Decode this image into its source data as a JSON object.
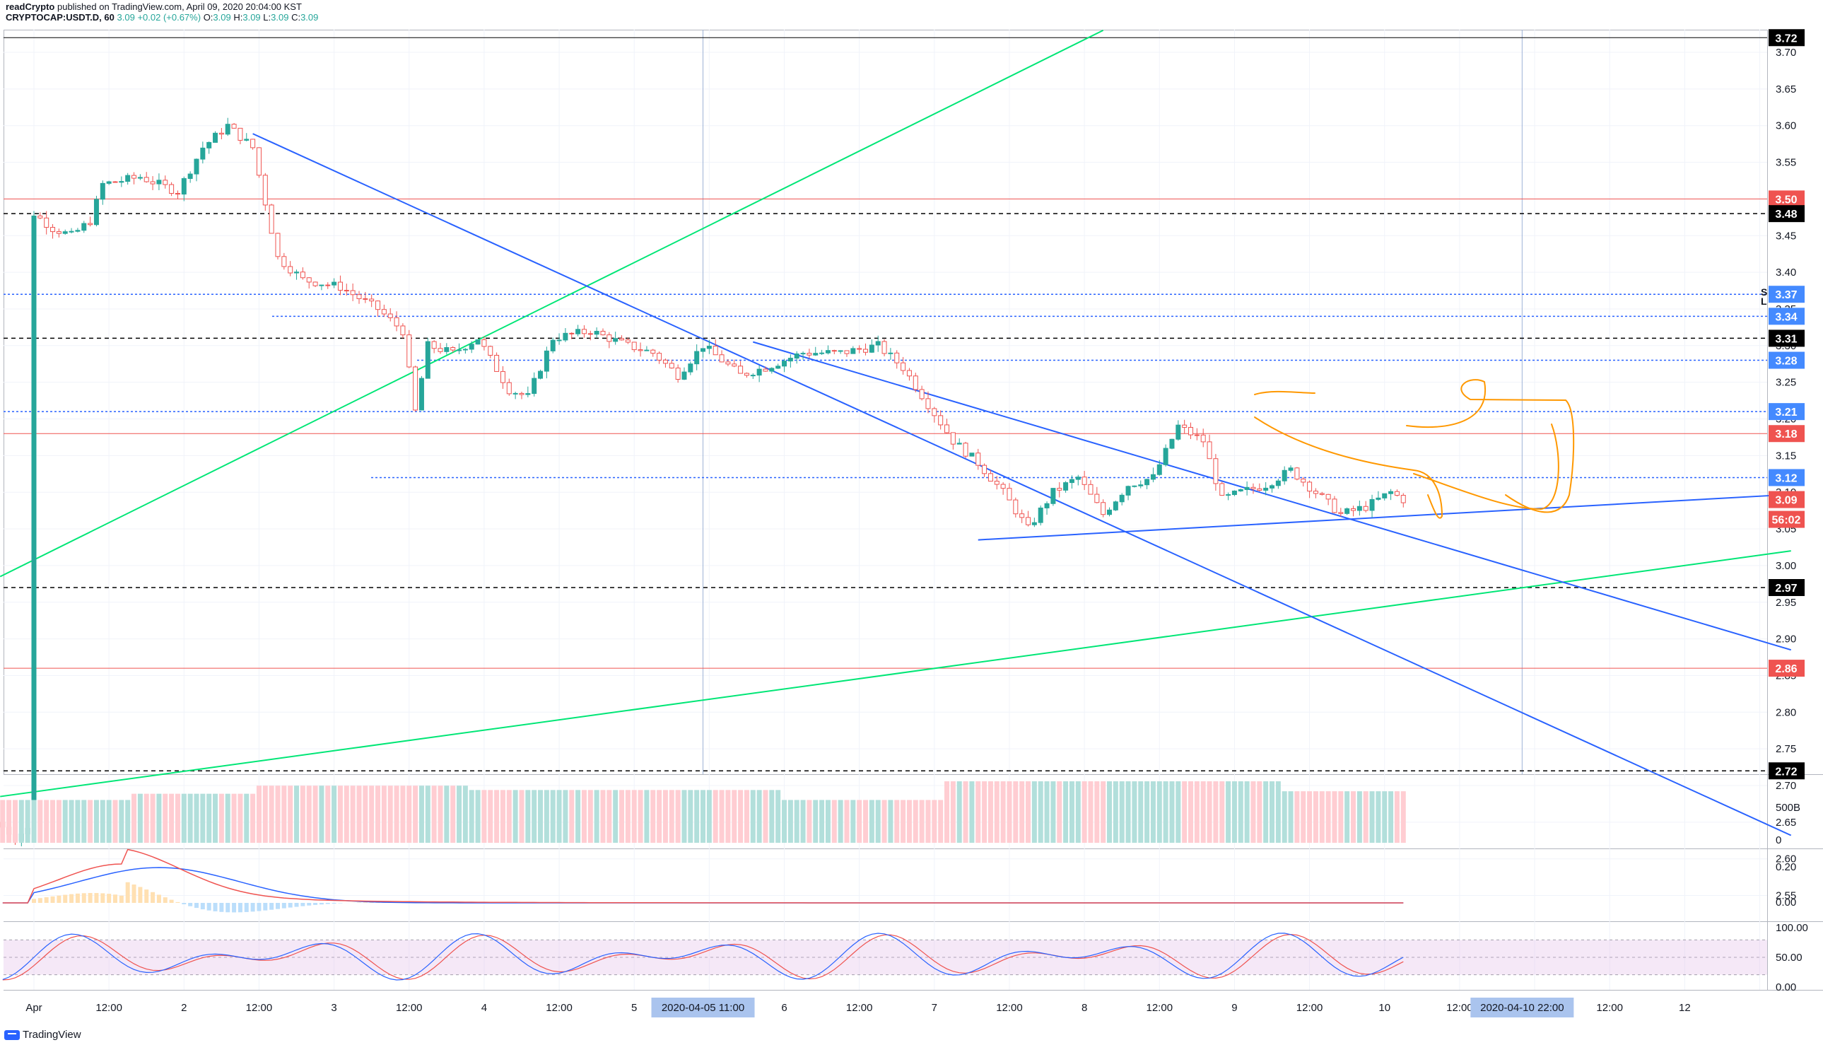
{
  "header": {
    "author": "readCrypto",
    "published_text": "published on TradingView.com, April 09, 2020 20:04:00 KST",
    "symbol": "CRYPTOCAP:USDT.D, 60",
    "last": "3.09",
    "change": "+0.02 (+0.67%)",
    "ohlc": {
      "o_label": "O:",
      "o": "3.09",
      "h_label": "H:",
      "h": "3.09",
      "l_label": "L:",
      "l": "3.09",
      "c_label": "C:",
      "c": "3.09"
    }
  },
  "footer": {
    "brand": "TradingView"
  },
  "colors": {
    "up": "#26a69a",
    "down": "#ef5350",
    "green_trend": "#00e676",
    "blue_trend": "#2962ff",
    "orange_drawing": "#ff9800",
    "red_level": "#ef5350",
    "black_level": "#000000",
    "blue_level": "#2962ff"
  },
  "chart_data": [
    {
      "type": "candlestick",
      "panel": "price",
      "y_axis_ticks": [
        "3.70",
        "3.65",
        "3.60",
        "3.55",
        "3.50",
        "3.45",
        "3.40",
        "3.35",
        "3.30",
        "3.25",
        "3.20",
        "3.15",
        "3.10",
        "3.05",
        "3.00",
        "2.95",
        "2.90",
        "2.85",
        "2.80",
        "2.75",
        "2.70",
        "2.65",
        "2.60",
        "2.55"
      ],
      "ylim": [
        2.53,
        3.73
      ],
      "x_tick_labels": [
        "Apr",
        "12:00",
        "2",
        "12:00",
        "3",
        "12:00",
        "4",
        "12:00",
        "5",
        "6",
        "12:00",
        "7",
        "12:00",
        "8",
        "12:00",
        "9",
        "12:00",
        "10",
        "12:00",
        "12:00",
        "12"
      ],
      "x_cursor_labels": [
        "2020-04-05   11:00",
        "2020-04-10   22:00"
      ],
      "price_labels": [
        {
          "text": "3.72",
          "value": 3.72,
          "color": "#000000",
          "line": "solid"
        },
        {
          "text": "3.50",
          "value": 3.5,
          "color": "#ef5350",
          "line": "solid"
        },
        {
          "text": "3.48",
          "value": 3.48,
          "color": "#000000",
          "line": "dashed"
        },
        {
          "text": "3.37",
          "value": 3.37,
          "color": "#2962ff",
          "line": "dotted"
        },
        {
          "text": "3.34",
          "value": 3.34,
          "color": "#2962ff",
          "line": "dotted"
        },
        {
          "text": "3.31",
          "value": 3.31,
          "color": "#000000",
          "line": "dashed"
        },
        {
          "text": "3.28",
          "value": 3.28,
          "color": "#2962ff",
          "line": "dotted"
        },
        {
          "text": "3.21",
          "value": 3.21,
          "color": "#2962ff",
          "line": "dotted"
        },
        {
          "text": "3.18",
          "value": 3.18,
          "color": "#ef5350",
          "line": "solid"
        },
        {
          "text": "3.12",
          "value": 3.12,
          "color": "#2962ff",
          "line": "dotted"
        },
        {
          "text": "3.09",
          "value": 3.09,
          "color": "#ef5350",
          "line": "none"
        },
        {
          "text": "56:02",
          "value": 3.063,
          "color": "#ef5350",
          "line": "none"
        },
        {
          "text": "2.97",
          "value": 2.97,
          "color": "#000000",
          "line": "dashed"
        },
        {
          "text": "2.86",
          "value": 2.86,
          "color": "#ef5350",
          "line": "solid"
        },
        {
          "text": "2.72",
          "value": 2.72,
          "color": "#000000",
          "line": "dashed"
        }
      ],
      "side_markers": [
        "S",
        "L"
      ],
      "candles_summary": {
        "open": 2.65,
        "spike_high": 3.5,
        "peak": 3.62,
        "low": 3.03,
        "last": 3.09
      }
    },
    {
      "type": "bar",
      "panel": "volume",
      "y_axis_ticks": [
        "500B",
        "0"
      ]
    },
    {
      "type": "line",
      "panel": "macd",
      "y_axis_ticks": [
        "0.20",
        "0.00"
      ]
    },
    {
      "type": "line",
      "panel": "stoch_rsi",
      "y_axis_ticks": [
        "100.00",
        "50.00",
        "0.00"
      ]
    }
  ]
}
